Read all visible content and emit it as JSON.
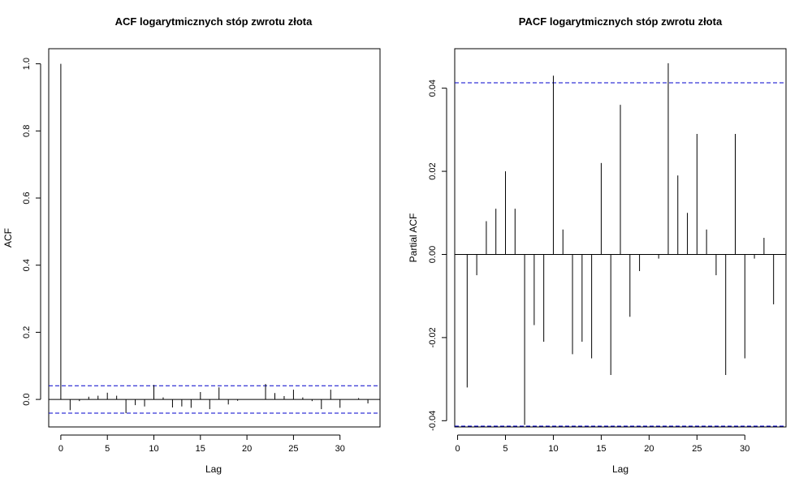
{
  "chart_data": [
    {
      "type": "bar",
      "title": "ACF logarytmicznych stóp zwrotu złota",
      "xlabel": "Lag",
      "ylabel": "ACF",
      "xlim": [
        -1.3,
        34.3
      ],
      "ylim": [
        -0.082,
        1.045
      ],
      "xticks": [
        0,
        5,
        10,
        15,
        20,
        25,
        30
      ],
      "yticks": [
        0.0,
        0.2,
        0.4,
        0.6,
        0.8,
        1.0
      ],
      "ytick_labels": [
        "0.0",
        "0.2",
        "0.4",
        "0.6",
        "0.8",
        "1.0"
      ],
      "confidence_bound": 0.0408,
      "grid": false,
      "x": [
        0,
        1,
        2,
        3,
        4,
        5,
        6,
        7,
        8,
        9,
        10,
        11,
        12,
        13,
        14,
        15,
        16,
        17,
        18,
        19,
        20,
        21,
        22,
        23,
        24,
        25,
        26,
        27,
        28,
        29,
        30,
        31,
        32,
        33
      ],
      "values": [
        1.0,
        -0.032,
        -0.005,
        0.008,
        0.011,
        0.02,
        0.011,
        -0.041,
        -0.017,
        -0.021,
        0.043,
        0.006,
        -0.024,
        -0.021,
        -0.025,
        0.022,
        -0.029,
        0.036,
        -0.015,
        -0.004,
        0.0,
        -0.001,
        0.046,
        0.019,
        0.01,
        0.029,
        0.006,
        -0.005,
        -0.029,
        0.029,
        -0.025,
        -0.001,
        0.004,
        -0.012
      ]
    },
    {
      "type": "bar",
      "title": "PACF logarytmicznych stóp zwrotu złota",
      "xlabel": "Lag",
      "ylabel": "Partial ACF",
      "xlim": [
        -0.3,
        34.3
      ],
      "ylim": [
        -0.0415,
        0.0495
      ],
      "xticks": [
        0,
        5,
        10,
        15,
        20,
        25,
        30
      ],
      "yticks": [
        -0.04,
        -0.02,
        0.0,
        0.02,
        0.04
      ],
      "ytick_labels": [
        "-0.04",
        "-0.02",
        "0.00",
        "0.02",
        "0.04"
      ],
      "confidence_bound": 0.0413,
      "grid": false,
      "x": [
        1,
        2,
        3,
        4,
        5,
        6,
        7,
        8,
        9,
        10,
        11,
        12,
        13,
        14,
        15,
        16,
        17,
        18,
        19,
        20,
        21,
        22,
        23,
        24,
        25,
        26,
        27,
        28,
        29,
        30,
        31,
        32,
        33
      ],
      "values": [
        -0.032,
        -0.005,
        0.008,
        0.011,
        0.02,
        0.011,
        -0.041,
        -0.017,
        -0.021,
        0.043,
        0.006,
        -0.024,
        -0.021,
        -0.025,
        0.022,
        -0.029,
        0.036,
        -0.015,
        -0.004,
        0.0,
        -0.001,
        0.046,
        0.019,
        0.01,
        0.029,
        0.006,
        -0.005,
        -0.029,
        0.029,
        -0.025,
        -0.001,
        0.004,
        -0.012
      ]
    }
  ]
}
